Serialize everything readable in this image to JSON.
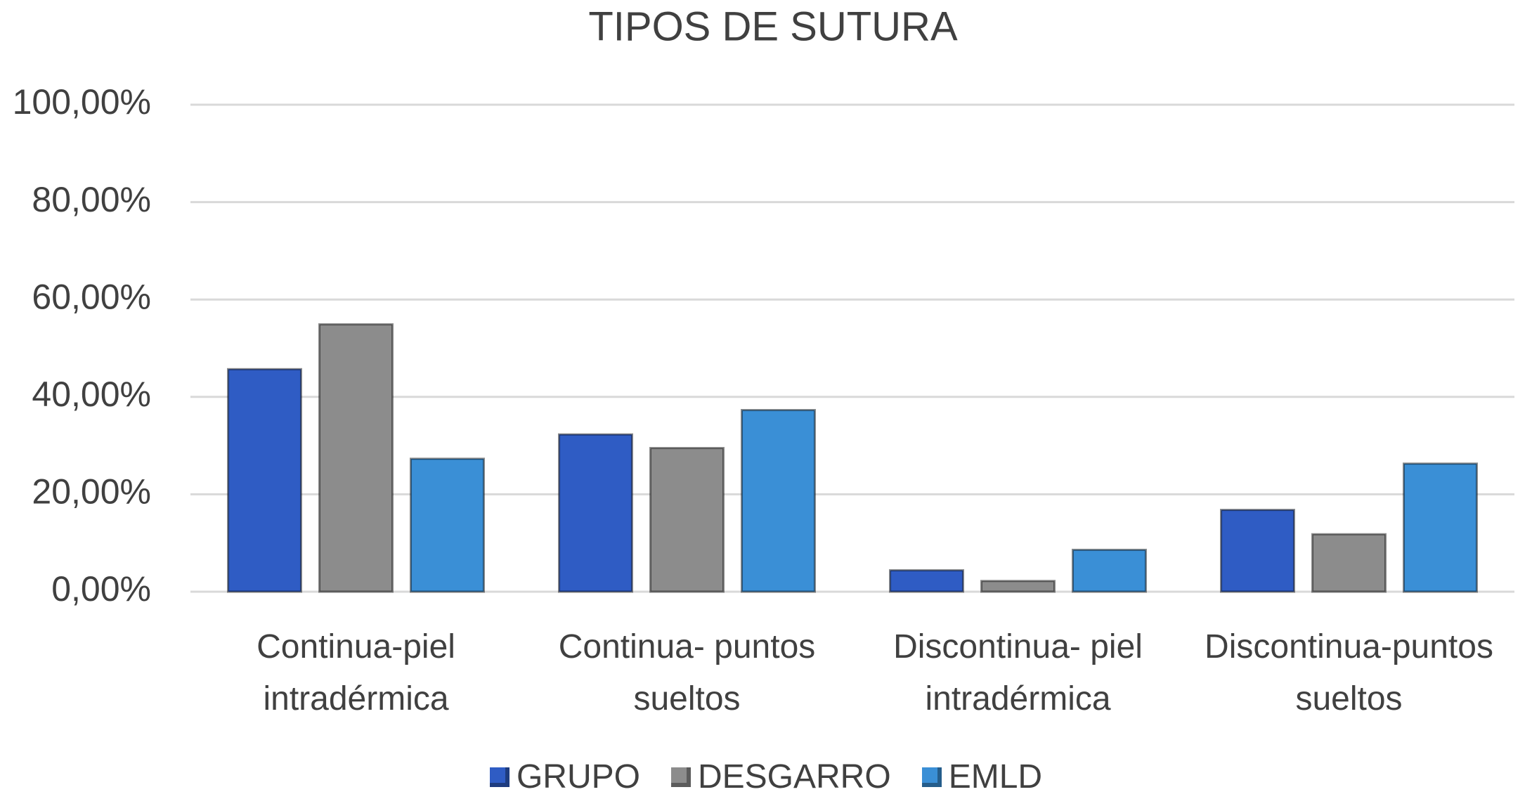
{
  "chart_data": {
    "type": "bar",
    "title": "TIPOS DE SUTURA",
    "categories": [
      "Continua-piel intradérmica",
      "Continua- puntos sueltos",
      "Discontinua- piel intradérmica",
      "Discontinua-puntos sueltos"
    ],
    "series": [
      {
        "name": "GRUPO",
        "color": "#2f5cc4",
        "values": [
          45.7,
          32.3,
          4.4,
          16.8
        ]
      },
      {
        "name": "DESGARRO",
        "color": "#8c8c8c",
        "values": [
          54.9,
          29.5,
          2.2,
          11.8
        ]
      },
      {
        "name": "EMLD",
        "color": "#3a8fd6",
        "values": [
          27.3,
          37.3,
          8.6,
          26.3
        ]
      }
    ],
    "ylim": [
      0,
      100
    ],
    "yticks": [
      {
        "value": 0,
        "label": "0,00%"
      },
      {
        "value": 20,
        "label": "20,00%"
      },
      {
        "value": 40,
        "label": "40,00%"
      },
      {
        "value": 60,
        "label": "60,00%"
      },
      {
        "value": 80,
        "label": "80,00%"
      },
      {
        "value": 100,
        "label": "100,00%"
      }
    ],
    "grid": true,
    "legend": "bottom"
  }
}
